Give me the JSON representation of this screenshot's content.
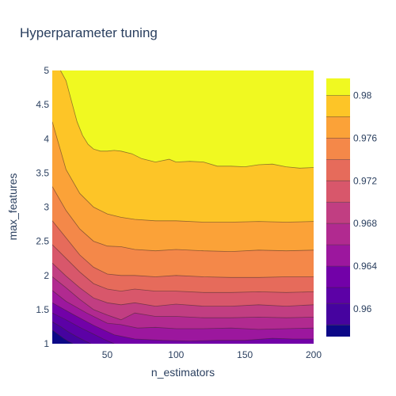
{
  "chart_data": {
    "type": "contour",
    "title": "Hyperparameter tuning",
    "xlabel": "n_estimators",
    "ylabel": "max_features",
    "xlim": [
      10,
      200
    ],
    "ylim": [
      1,
      5
    ],
    "xticks": [
      50,
      100,
      150,
      200
    ],
    "yticks": [
      1,
      1.5,
      2,
      2.5,
      3,
      3.5,
      4,
      4.5,
      5
    ],
    "ytick_labels": [
      "1",
      "1.5",
      "2",
      "2.5",
      "3",
      "3.5",
      "4",
      "4.5",
      "5"
    ],
    "colorbar": {
      "ticks": [
        0.96,
        0.964,
        0.968,
        0.972,
        0.976,
        0.98
      ],
      "tick_labels": [
        "0.96",
        "0.964",
        "0.968",
        "0.972",
        "0.976",
        "0.98"
      ],
      "range": [
        0.9574,
        0.9816
      ],
      "colorscale": "plasma"
    },
    "levels": [
      0.9585,
      0.9605,
      0.962,
      0.964,
      0.966,
      0.968,
      0.97,
      0.972,
      0.974,
      0.976,
      0.978,
      0.98
    ],
    "colors": [
      "#0d0887",
      "#46039f",
      "#5c01a6",
      "#7201a8",
      "#9c179e",
      "#b12a90",
      "#c13e82",
      "#d8576b",
      "#e66b5b",
      "#f48849",
      "#fba238",
      "#fdc527",
      "#f0f921"
    ],
    "contour_lines": [
      {
        "level": 0.9585,
        "x": [
          10,
          14,
          18,
          22,
          25
        ],
        "y": [
          1.2,
          1.14,
          1.08,
          1.03,
          1.0
        ]
      },
      {
        "level": 0.9605,
        "x": [
          10,
          16,
          22,
          28,
          34,
          38
        ],
        "y": [
          1.32,
          1.25,
          1.17,
          1.1,
          1.04,
          1.0
        ]
      },
      {
        "level": 0.962,
        "x": [
          10,
          20,
          30,
          40,
          48,
          55
        ],
        "y": [
          1.45,
          1.35,
          1.24,
          1.14,
          1.06,
          1.0
        ]
      },
      {
        "level": 0.964,
        "x": [
          10,
          25,
          40,
          55,
          70,
          90,
          110,
          130,
          150,
          170,
          185,
          200
        ],
        "y": [
          1.6,
          1.43,
          1.27,
          1.13,
          1.07,
          1.05,
          1.04,
          1.05,
          1.05,
          1.08,
          1.07,
          1.07
        ]
      },
      {
        "level": 0.966,
        "x": [
          10,
          20,
          35,
          50,
          60,
          72,
          85,
          100,
          120,
          140,
          160,
          180,
          200
        ],
        "y": [
          1.78,
          1.62,
          1.45,
          1.3,
          1.28,
          1.23,
          1.24,
          1.22,
          1.22,
          1.23,
          1.21,
          1.22,
          1.23
        ]
      },
      {
        "level": 0.968,
        "x": [
          10,
          20,
          30,
          40,
          50,
          60,
          70,
          85,
          100,
          120,
          140,
          160,
          180,
          200
        ],
        "y": [
          1.98,
          1.82,
          1.65,
          1.5,
          1.42,
          1.35,
          1.45,
          1.4,
          1.4,
          1.38,
          1.38,
          1.39,
          1.38,
          1.39
        ]
      },
      {
        "level": 0.97,
        "x": [
          10,
          20,
          30,
          40,
          50,
          60,
          70,
          85,
          100,
          120,
          140,
          160,
          180,
          200
        ],
        "y": [
          2.18,
          1.99,
          1.82,
          1.67,
          1.6,
          1.57,
          1.6,
          1.55,
          1.58,
          1.55,
          1.55,
          1.57,
          1.55,
          1.57
        ]
      },
      {
        "level": 0.972,
        "x": [
          10,
          20,
          30,
          40,
          50,
          60,
          70,
          85,
          100,
          120,
          140,
          160,
          180,
          200
        ],
        "y": [
          2.45,
          2.25,
          2.05,
          1.88,
          1.8,
          1.77,
          1.8,
          1.77,
          1.77,
          1.75,
          1.75,
          1.76,
          1.75,
          1.76
        ]
      },
      {
        "level": 0.974,
        "x": [
          10,
          20,
          30,
          40,
          50,
          60,
          70,
          85,
          100,
          120,
          140,
          160,
          180,
          200
        ],
        "y": [
          2.8,
          2.55,
          2.3,
          2.12,
          2.02,
          2.0,
          2.0,
          1.98,
          2.0,
          1.98,
          1.97,
          1.97,
          1.98,
          1.98
        ]
      },
      {
        "level": 0.976,
        "x": [
          10,
          20,
          30,
          40,
          50,
          60,
          70,
          85,
          100,
          120,
          140,
          160,
          180,
          200
        ],
        "y": [
          3.3,
          2.95,
          2.68,
          2.5,
          2.43,
          2.42,
          2.38,
          2.36,
          2.38,
          2.36,
          2.35,
          2.37,
          2.36,
          2.37
        ]
      },
      {
        "level": 0.978,
        "x": [
          10,
          20,
          30,
          40,
          50,
          60,
          70,
          85,
          100,
          120,
          140,
          160,
          180,
          200
        ],
        "y": [
          4.25,
          3.55,
          3.2,
          3.0,
          2.9,
          2.85,
          2.82,
          2.8,
          2.8,
          2.78,
          2.78,
          2.79,
          2.78,
          2.79
        ]
      },
      {
        "level": 0.98,
        "x": [
          16,
          20,
          24,
          28,
          32,
          36,
          40,
          45,
          50,
          55,
          60,
          68,
          75,
          85,
          95,
          100,
          110,
          120,
          130,
          140,
          150,
          160,
          170,
          180,
          190,
          200
        ],
        "y": [
          5.0,
          4.85,
          4.55,
          4.25,
          4.05,
          3.92,
          3.85,
          3.82,
          3.82,
          3.83,
          3.82,
          3.78,
          3.71,
          3.66,
          3.7,
          3.66,
          3.67,
          3.66,
          3.6,
          3.6,
          3.59,
          3.62,
          3.63,
          3.59,
          3.57,
          3.58
        ]
      }
    ]
  }
}
